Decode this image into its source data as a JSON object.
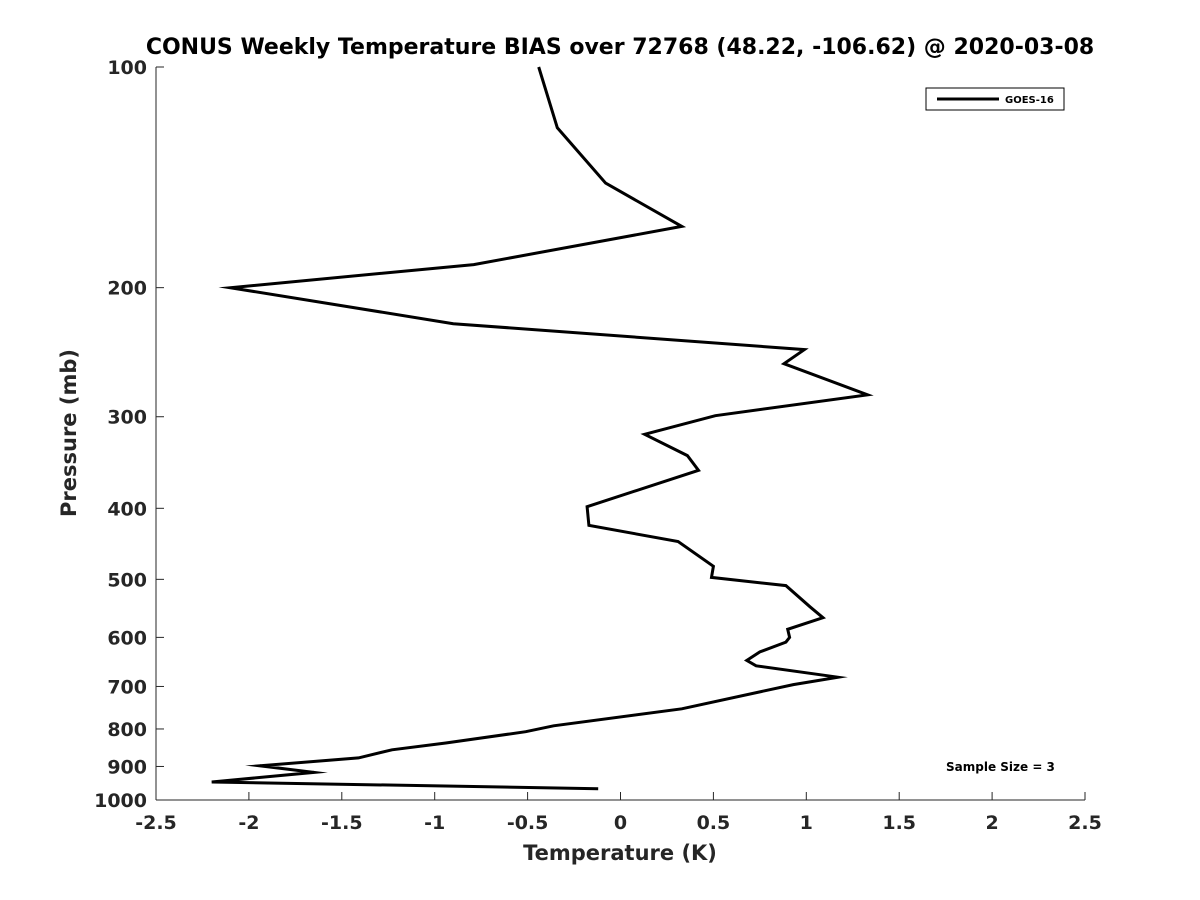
{
  "chart_data": {
    "type": "line",
    "title": "CONUS Weekly Temperature BIAS over 72768 (48.22, -106.62) @ 2020-03-08",
    "xlabel": "Temperature (K)",
    "ylabel": "Pressure (mb)",
    "xlim": [
      -2.5,
      2.5
    ],
    "ylim": [
      1000,
      100
    ],
    "y_scale": "log",
    "y_reversed": true,
    "x_ticks": [
      "-2.5",
      "-2",
      "-1.5",
      "-1",
      "-0.5",
      "0",
      "0.5",
      "1",
      "1.5",
      "2",
      "2.5"
    ],
    "y_ticks": [
      "100",
      "200",
      "300",
      "400",
      "500",
      "600",
      "700",
      "800",
      "900",
      "1000"
    ],
    "grid": false,
    "legend_position": "top-right",
    "series": [
      {
        "name": "GOES-16",
        "color": "#000000",
        "x": [
          -0.44,
          -0.34,
          -0.08,
          0.33,
          -0.79,
          -2.1,
          -0.9,
          0.99,
          0.88,
          1.33,
          0.51,
          0.13,
          0.36,
          0.42,
          -0.18,
          -0.17,
          0.31,
          0.5,
          0.49,
          0.89,
          1.02,
          1.09,
          0.9,
          0.91,
          0.89,
          0.75,
          0.68,
          0.73,
          1.17,
          0.93,
          0.33,
          -0.36,
          -0.51,
          -0.94,
          -1.23,
          -1.41,
          -1.94,
          -1.65,
          -2.2,
          -0.12
        ],
        "y": [
          100,
          121,
          144,
          165,
          186,
          200,
          224,
          243,
          254,
          280,
          299,
          317,
          339,
          355,
          398,
          422,
          444,
          480,
          497,
          510,
          545,
          564,
          585,
          600,
          609,
          628,
          645,
          656,
          680,
          696,
          751,
          792,
          807,
          836,
          854,
          876,
          898,
          917,
          945,
          965
        ]
      }
    ],
    "annotations": [
      "Sample Size = 3"
    ]
  }
}
